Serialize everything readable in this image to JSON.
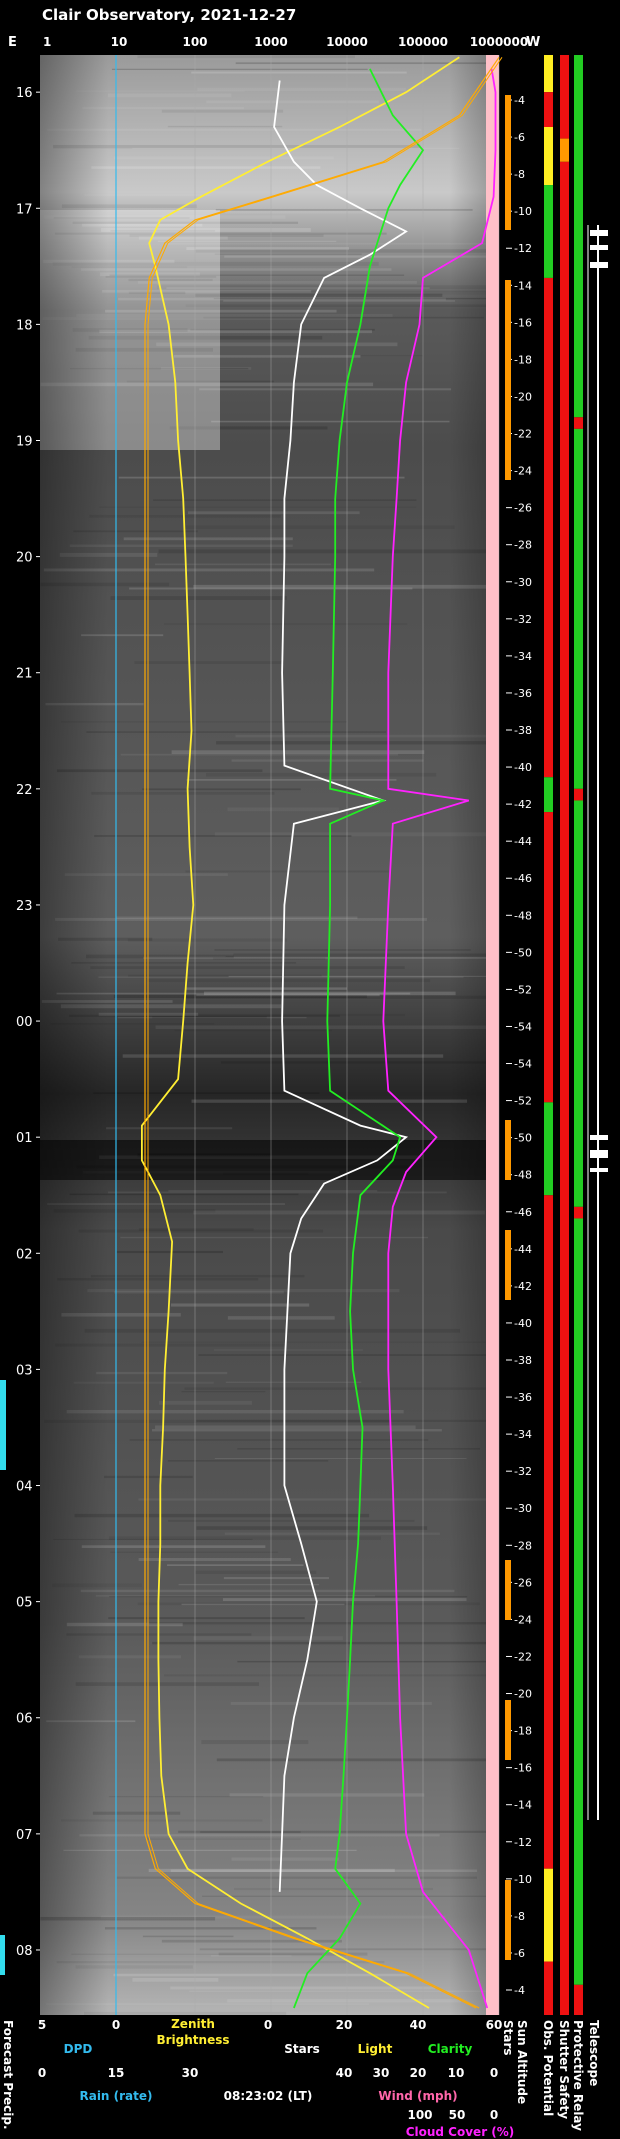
{
  "chart_data": {
    "type": "line",
    "title": "Clair Observatory, 2021-12-27",
    "orientation": "vertical-time",
    "time_axis": {
      "labels": [
        "16",
        "17",
        "18",
        "19",
        "20",
        "21",
        "22",
        "23",
        "00",
        "01",
        "02",
        "03",
        "04",
        "05",
        "06",
        "07",
        "08"
      ],
      "start_hour": 15.68,
      "end_hour": 32.56
    },
    "top_axis": {
      "left_label": "E",
      "right_label": "W",
      "log_ticks": [
        "1",
        "10",
        "100",
        "1000",
        "10000",
        "100000",
        "1000000"
      ]
    },
    "sun_altitude": {
      "labels": [
        "-4",
        "-6",
        "-8",
        "-10",
        "-12",
        "-14",
        "-16",
        "-18",
        "-20",
        "-22",
        "-24",
        "-26",
        "-28",
        "-30",
        "-32",
        "-34",
        "-36",
        "-38",
        "-40",
        "-42",
        "-44",
        "-46",
        "-48",
        "-50",
        "-52",
        "-54",
        "-54",
        "-52",
        "-50",
        "-48",
        "-46",
        "-44",
        "-42",
        "-40",
        "-38",
        "-36",
        "-34",
        "-32",
        "-30",
        "-28",
        "-26",
        "-24",
        "-22",
        "-20",
        "-18",
        "-16",
        "-14",
        "-12",
        "-10",
        "-8",
        "-6",
        "-4"
      ]
    },
    "series": [
      {
        "name": "Zenith Brightness",
        "color": "#ffee33",
        "points": [
          [
            15.7,
            300000
          ],
          [
            16.0,
            60000
          ],
          [
            16.3,
            8000
          ],
          [
            16.6,
            900
          ],
          [
            16.9,
            120
          ],
          [
            17.1,
            35
          ],
          [
            17.3,
            25
          ],
          [
            17.5,
            30
          ],
          [
            18.0,
            45
          ],
          [
            18.5,
            55
          ],
          [
            19.0,
            60
          ],
          [
            19.5,
            70
          ],
          [
            20.0,
            75
          ],
          [
            20.5,
            80
          ],
          [
            21.0,
            85
          ],
          [
            21.5,
            90
          ],
          [
            22.0,
            80
          ],
          [
            22.5,
            85
          ],
          [
            23.0,
            95
          ],
          [
            23.5,
            80
          ],
          [
            24.0,
            70
          ],
          [
            24.5,
            60
          ],
          [
            24.9,
            20
          ],
          [
            25.2,
            20
          ],
          [
            25.5,
            35
          ],
          [
            25.9,
            50
          ],
          [
            26.5,
            45
          ],
          [
            27.0,
            40
          ],
          [
            27.5,
            38
          ],
          [
            28.0,
            35
          ],
          [
            28.5,
            35
          ],
          [
            29.0,
            33
          ],
          [
            29.5,
            33
          ],
          [
            30.0,
            34
          ],
          [
            30.5,
            36
          ],
          [
            31.0,
            45
          ],
          [
            31.3,
            80
          ],
          [
            31.6,
            400
          ],
          [
            31.9,
            3000
          ],
          [
            32.2,
            20000
          ],
          [
            32.5,
            120000
          ]
        ]
      },
      {
        "name": "Stars",
        "color": "#ffffff",
        "points": [
          [
            15.9,
            1300
          ],
          [
            16.3,
            1100
          ],
          [
            16.6,
            2000
          ],
          [
            16.8,
            4000
          ],
          [
            17.0,
            15000
          ],
          [
            17.2,
            60000
          ],
          [
            17.4,
            20000
          ],
          [
            17.6,
            5000
          ],
          [
            18.0,
            2500
          ],
          [
            18.5,
            2000
          ],
          [
            19.0,
            1800
          ],
          [
            19.5,
            1500
          ],
          [
            20.0,
            1500
          ],
          [
            21.0,
            1400
          ],
          [
            21.8,
            1500
          ],
          [
            22.1,
            30000
          ],
          [
            22.3,
            2000
          ],
          [
            23.0,
            1500
          ],
          [
            24.0,
            1400
          ],
          [
            24.6,
            1500
          ],
          [
            24.9,
            15000
          ],
          [
            25.0,
            60000
          ],
          [
            25.2,
            25000
          ],
          [
            25.4,
            5000
          ],
          [
            25.7,
            2500
          ],
          [
            26.0,
            1800
          ],
          [
            27.0,
            1500
          ],
          [
            28.0,
            1500
          ],
          [
            28.5,
            2500
          ],
          [
            29.0,
            4000
          ],
          [
            29.5,
            3000
          ],
          [
            30.0,
            2000
          ],
          [
            30.5,
            1500
          ],
          [
            31.0,
            1400
          ],
          [
            31.5,
            1300
          ]
        ]
      },
      {
        "name": "Clarity",
        "color": "#22ee22",
        "points": [
          [
            15.8,
            20000
          ],
          [
            16.2,
            40000
          ],
          [
            16.5,
            100000
          ],
          [
            16.8,
            50000
          ],
          [
            17.0,
            35000
          ],
          [
            17.5,
            20000
          ],
          [
            18.0,
            15000
          ],
          [
            18.5,
            10000
          ],
          [
            19.0,
            8000
          ],
          [
            19.5,
            7000
          ],
          [
            20.0,
            7000
          ],
          [
            21.0,
            6500
          ],
          [
            22.0,
            6000
          ],
          [
            22.1,
            30000
          ],
          [
            22.3,
            6000
          ],
          [
            23.0,
            6000
          ],
          [
            24.0,
            5500
          ],
          [
            24.6,
            6000
          ],
          [
            25.0,
            50000
          ],
          [
            25.2,
            40000
          ],
          [
            25.5,
            15000
          ],
          [
            26.0,
            12000
          ],
          [
            26.5,
            11000
          ],
          [
            27.0,
            12000
          ],
          [
            27.5,
            16000
          ],
          [
            28.0,
            15000
          ],
          [
            28.5,
            14000
          ],
          [
            29.0,
            12000
          ],
          [
            29.5,
            11000
          ],
          [
            30.0,
            10000
          ],
          [
            30.5,
            9000
          ],
          [
            31.0,
            8000
          ],
          [
            31.3,
            7000
          ],
          [
            31.6,
            15000
          ],
          [
            31.9,
            8000
          ],
          [
            32.2,
            3000
          ],
          [
            32.5,
            2000
          ]
        ]
      },
      {
        "name": "Cloud Cover",
        "color": "#ff22ff",
        "points": [
          [
            15.8,
            800000
          ],
          [
            16.0,
            900000
          ],
          [
            16.5,
            900000
          ],
          [
            16.9,
            850000
          ],
          [
            17.3,
            600000
          ],
          [
            17.6,
            100000
          ],
          [
            18.0,
            90000
          ],
          [
            18.5,
            60000
          ],
          [
            19.0,
            50000
          ],
          [
            19.5,
            45000
          ],
          [
            20.0,
            40000
          ],
          [
            21.0,
            35000
          ],
          [
            22.0,
            35000
          ],
          [
            22.1,
            400000
          ],
          [
            22.3,
            40000
          ],
          [
            23.0,
            35000
          ],
          [
            24.0,
            30000
          ],
          [
            24.6,
            35000
          ],
          [
            25.0,
            150000
          ],
          [
            25.3,
            60000
          ],
          [
            25.6,
            40000
          ],
          [
            26.0,
            35000
          ],
          [
            27.0,
            35000
          ],
          [
            28.0,
            40000
          ],
          [
            29.0,
            45000
          ],
          [
            30.0,
            50000
          ],
          [
            31.0,
            60000
          ],
          [
            31.5,
            100000
          ],
          [
            32.0,
            400000
          ],
          [
            32.5,
            700000
          ]
        ]
      },
      {
        "name": "Sun Altitude",
        "color": "#ffaa00",
        "points": [
          [
            15.7,
            1000000
          ],
          [
            16.2,
            300000
          ],
          [
            16.6,
            30000
          ],
          [
            16.9,
            1000
          ],
          [
            17.1,
            100
          ],
          [
            17.3,
            40
          ],
          [
            17.6,
            25
          ],
          [
            18.0,
            22
          ],
          [
            19.0,
            22
          ],
          [
            20.0,
            22
          ],
          [
            21.0,
            22
          ],
          [
            22.0,
            22
          ],
          [
            23.0,
            22
          ],
          [
            24.0,
            22
          ],
          [
            25.0,
            22
          ],
          [
            26.0,
            22
          ],
          [
            27.0,
            22
          ],
          [
            28.0,
            22
          ],
          [
            29.0,
            22
          ],
          [
            30.0,
            22
          ],
          [
            31.0,
            22
          ],
          [
            31.3,
            30
          ],
          [
            31.6,
            100
          ],
          [
            31.9,
            2000
          ],
          [
            32.2,
            60000
          ],
          [
            32.5,
            500000
          ]
        ]
      }
    ],
    "status_columns": [
      {
        "name": "Obs. Potential",
        "segments": [
          [
            15.68,
            16.0,
            "yellow"
          ],
          [
            16.0,
            16.3,
            "red"
          ],
          [
            16.3,
            16.8,
            "yellow"
          ],
          [
            16.8,
            17.6,
            "green"
          ],
          [
            17.6,
            21.9,
            "red"
          ],
          [
            21.9,
            22.2,
            "green"
          ],
          [
            22.2,
            24.7,
            "red"
          ],
          [
            24.7,
            25.5,
            "green"
          ],
          [
            25.5,
            31.3,
            "red"
          ],
          [
            31.3,
            32.1,
            "yellow"
          ],
          [
            32.1,
            32.56,
            "red"
          ]
        ]
      },
      {
        "name": "Shutter Safety",
        "segments": [
          [
            15.68,
            16.4,
            "red"
          ],
          [
            16.4,
            16.6,
            "orange"
          ],
          [
            16.6,
            32.56,
            "red"
          ]
        ]
      },
      {
        "name": "Protective Relay",
        "segments": [
          [
            15.68,
            18.8,
            "green"
          ],
          [
            18.8,
            18.9,
            "red"
          ],
          [
            18.9,
            22.0,
            "green"
          ],
          [
            22.0,
            22.1,
            "red"
          ],
          [
            22.1,
            25.6,
            "green"
          ],
          [
            25.6,
            25.7,
            "red"
          ],
          [
            25.7,
            32.3,
            "green"
          ],
          [
            32.3,
            32.56,
            "red"
          ]
        ]
      }
    ],
    "columns_labels": [
      "Stars",
      "Sun Altitude",
      "Obs. Potential",
      "Shutter Safety",
      "Protective Relay",
      "Telescope"
    ],
    "bottom_axes": {
      "dpd": {
        "label": "DPD",
        "ticks": [
          "5",
          "0"
        ]
      },
      "zenith": {
        "label": "Zenith Brightness"
      },
      "stars": {
        "label": "Stars",
        "ticks": [
          "0",
          "20",
          "40",
          "60"
        ]
      },
      "light": {
        "label": "Light"
      },
      "clarity": {
        "label": "Clarity"
      },
      "rain": {
        "label": "Rain (rate)",
        "ticks": [
          "0",
          "15",
          "30"
        ]
      },
      "wind": {
        "label": "Wind (mph)",
        "ticks": [
          "40",
          "30",
          "20",
          "10",
          "0"
        ]
      },
      "cloud": {
        "label": "Cloud Cover (%)",
        "ticks": [
          "100",
          "50",
          "0"
        ]
      },
      "forecast": {
        "label": "Forecast Precip."
      }
    },
    "timestamp": "08:23:02 (LT)"
  }
}
